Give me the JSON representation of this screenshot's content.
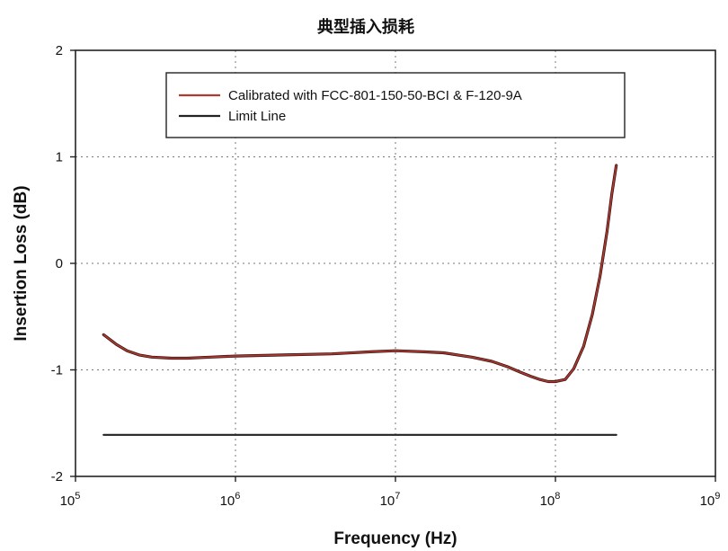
{
  "chart_data": {
    "type": "line",
    "title": "典型插入损耗",
    "xlabel": "Frequency (Hz)",
    "ylabel": "Insertion Loss (dB)",
    "xscale": "log",
    "xlim": [
      100000,
      1000000000
    ],
    "ylim": [
      -2,
      2
    ],
    "xticks": [
      {
        "value": 100000,
        "base": "10",
        "exp": "5"
      },
      {
        "value": 1000000,
        "base": "10",
        "exp": "6"
      },
      {
        "value": 10000000,
        "base": "10",
        "exp": "7"
      },
      {
        "value": 100000000,
        "base": "10",
        "exp": "8"
      },
      {
        "value": 1000000000,
        "base": "10",
        "exp": "9"
      }
    ],
    "yticks": [
      {
        "value": -2,
        "label": "-2"
      },
      {
        "value": -1,
        "label": "-1"
      },
      {
        "value": 0,
        "label": "0"
      },
      {
        "value": 1,
        "label": "1"
      },
      {
        "value": 2,
        "label": "2"
      }
    ],
    "grid": true,
    "legend_position": "top",
    "series": [
      {
        "name": "Calibrated with FCC-801-150-50-BCI & F-120-9A",
        "color": "#b03a32",
        "points": [
          [
            150000,
            -0.67
          ],
          [
            180000,
            -0.76
          ],
          [
            210000,
            -0.82
          ],
          [
            250000,
            -0.86
          ],
          [
            300000,
            -0.88
          ],
          [
            400000,
            -0.89
          ],
          [
            500000,
            -0.89
          ],
          [
            700000,
            -0.88
          ],
          [
            1000000,
            -0.87
          ],
          [
            2000000,
            -0.86
          ],
          [
            4000000,
            -0.85
          ],
          [
            7000000,
            -0.83
          ],
          [
            10000000,
            -0.82
          ],
          [
            15000000,
            -0.83
          ],
          [
            20000000,
            -0.84
          ],
          [
            30000000,
            -0.88
          ],
          [
            40000000,
            -0.92
          ],
          [
            50000000,
            -0.97
          ],
          [
            60000000,
            -1.02
          ],
          [
            70000000,
            -1.06
          ],
          [
            80000000,
            -1.09
          ],
          [
            90000000,
            -1.11
          ],
          [
            100000000,
            -1.11
          ],
          [
            115000000,
            -1.09
          ],
          [
            130000000,
            -0.99
          ],
          [
            150000000,
            -0.78
          ],
          [
            170000000,
            -0.48
          ],
          [
            190000000,
            -0.12
          ],
          [
            210000000,
            0.3
          ],
          [
            225000000,
            0.65
          ],
          [
            240000000,
            0.92
          ]
        ]
      },
      {
        "name": "Limit Line",
        "color": "#222222",
        "points": [
          [
            150000,
            -1.61
          ],
          [
            240000000,
            -1.61
          ]
        ]
      }
    ]
  }
}
